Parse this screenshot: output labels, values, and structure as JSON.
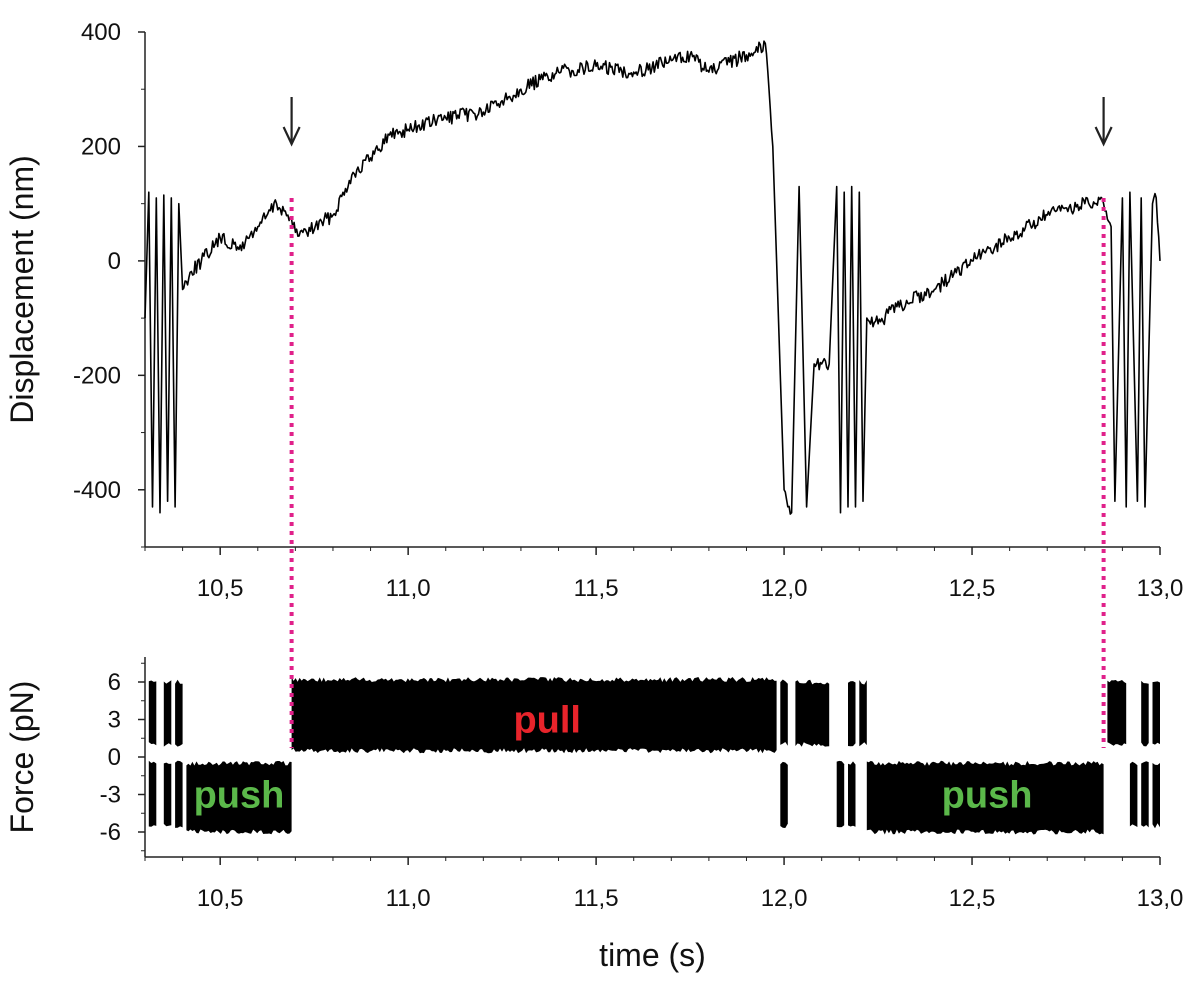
{
  "chart_data": [
    {
      "type": "line",
      "panel": "top",
      "ylabel": "Displacement (nm)",
      "xlim": [
        10.3,
        13.0
      ],
      "ylim": [
        -500,
        400
      ],
      "x_ticks": [
        10.5,
        11.0,
        11.5,
        12.0,
        12.5,
        13.0
      ],
      "x_tick_labels": [
        "10,5",
        "11,0",
        "11,5",
        "12,0",
        "12,5",
        "13,0"
      ],
      "y_ticks": [
        400,
        200,
        0,
        -200,
        -400
      ],
      "y_tick_labels": [
        "400",
        "200",
        "0",
        "-200",
        "-400"
      ],
      "line_color": "#000000",
      "series": [
        {
          "x": [
            10.3,
            10.31,
            10.32,
            10.33,
            10.34,
            10.35,
            10.36,
            10.37,
            10.38,
            10.39,
            10.4,
            10.42,
            10.45,
            10.5,
            10.55,
            10.6,
            10.65,
            10.68,
            10.7,
            10.73,
            10.8,
            10.85,
            10.9,
            10.95,
            11.0,
            11.1,
            11.2,
            11.25,
            11.3,
            11.4,
            11.5,
            11.6,
            11.7,
            11.75,
            11.8,
            11.9,
            11.95,
            11.96,
            11.97,
            11.98,
            11.99,
            12.0,
            12.02,
            12.04,
            12.06,
            12.08,
            12.1,
            12.12,
            12.14,
            12.15,
            12.16,
            12.17,
            12.18,
            12.19,
            12.2,
            12.21,
            12.22,
            12.25,
            12.3,
            12.4,
            12.5,
            12.6,
            12.7,
            12.8,
            12.85,
            12.87,
            12.88,
            12.9,
            12.91,
            12.92,
            12.94,
            12.95,
            12.96,
            12.98,
            12.99,
            13.0
          ],
          "y": [
            -100,
            120,
            -430,
            110,
            -440,
            115,
            -420,
            110,
            -430,
            100,
            -50,
            -20,
            0,
            40,
            20,
            60,
            100,
            80,
            50,
            50,
            80,
            150,
            180,
            220,
            230,
            250,
            260,
            280,
            300,
            330,
            340,
            330,
            350,
            360,
            330,
            360,
            380,
            300,
            200,
            0,
            -200,
            -400,
            -440,
            130,
            -430,
            -180,
            -180,
            -180,
            130,
            -440,
            120,
            -430,
            130,
            -430,
            120,
            -420,
            -100,
            -110,
            -80,
            -50,
            0,
            40,
            80,
            100,
            100,
            60,
            -420,
            110,
            -430,
            120,
            -420,
            110,
            -430,
            100,
            110,
            0
          ]
        }
      ],
      "markers": [
        {
          "label_x": 10.69,
          "kind": "arrow"
        },
        {
          "label_x": 12.85,
          "kind": "arrow"
        }
      ]
    },
    {
      "type": "area",
      "panel": "bottom",
      "ylabel": "Force (pN)",
      "xlabel": "time (s)",
      "xlim": [
        10.3,
        13.0
      ],
      "ylim": [
        -8,
        8
      ],
      "x_ticks": [
        10.5,
        11.0,
        11.5,
        12.0,
        12.5,
        13.0
      ],
      "x_tick_labels": [
        "10,5",
        "11,0",
        "11,5",
        "12,0",
        "12,5",
        "13,0"
      ],
      "y_ticks": [
        6,
        3,
        0,
        -3,
        -6
      ],
      "y_tick_labels": [
        "6",
        "3",
        "0",
        "-3",
        "-6"
      ],
      "fill_color": "#000000",
      "bands": [
        {
          "x0": 10.31,
          "x1": 10.33,
          "low": 1,
          "high": 6
        },
        {
          "x0": 10.31,
          "x1": 10.33,
          "low": -5.5,
          "high": -0.5
        },
        {
          "x0": 10.35,
          "x1": 10.37,
          "low": 1,
          "high": 6
        },
        {
          "x0": 10.35,
          "x1": 10.37,
          "low": -5.5,
          "high": -0.5
        },
        {
          "x0": 10.38,
          "x1": 10.4,
          "low": 1,
          "high": 6
        },
        {
          "x0": 10.38,
          "x1": 10.4,
          "low": -5.5,
          "high": -0.5
        },
        {
          "x0": 10.41,
          "x1": 10.69,
          "low": -6,
          "high": -0.5
        },
        {
          "x0": 10.69,
          "x1": 11.98,
          "low": 0.5,
          "high": 6.2
        },
        {
          "x0": 11.99,
          "x1": 12.01,
          "low": 1,
          "high": 6
        },
        {
          "x0": 11.99,
          "x1": 12.01,
          "low": -5.5,
          "high": -0.5
        },
        {
          "x0": 12.03,
          "x1": 12.12,
          "low": 1,
          "high": 6
        },
        {
          "x0": 12.14,
          "x1": 12.16,
          "low": -5.5,
          "high": -0.5
        },
        {
          "x0": 12.17,
          "x1": 12.19,
          "low": 1,
          "high": 6
        },
        {
          "x0": 12.17,
          "x1": 12.19,
          "low": -5.5,
          "high": -0.5
        },
        {
          "x0": 12.2,
          "x1": 12.22,
          "low": 1,
          "high": 6
        },
        {
          "x0": 12.22,
          "x1": 12.85,
          "low": -6,
          "high": -0.5
        },
        {
          "x0": 12.86,
          "x1": 12.91,
          "low": 1,
          "high": 6
        },
        {
          "x0": 12.92,
          "x1": 12.94,
          "low": -5.5,
          "high": -0.5
        },
        {
          "x0": 12.95,
          "x1": 12.97,
          "low": 1,
          "high": 6
        },
        {
          "x0": 12.95,
          "x1": 12.97,
          "low": -5.5,
          "high": -0.5
        },
        {
          "x0": 12.98,
          "x1": 13.0,
          "low": 1,
          "high": 6
        },
        {
          "x0": 12.98,
          "x1": 13.0,
          "low": -5.5,
          "high": -0.5
        }
      ],
      "annotations": [
        {
          "text": "push",
          "x": 10.55,
          "y": -3,
          "color": "#5bb84a"
        },
        {
          "text": "pull",
          "x": 11.37,
          "y": 3,
          "color": "#e8242b"
        },
        {
          "text": "push",
          "x": 12.54,
          "y": -3,
          "color": "#5bb84a"
        }
      ]
    }
  ],
  "connectors": {
    "color": "#e0218a",
    "x_values": [
      10.69,
      12.85
    ]
  }
}
